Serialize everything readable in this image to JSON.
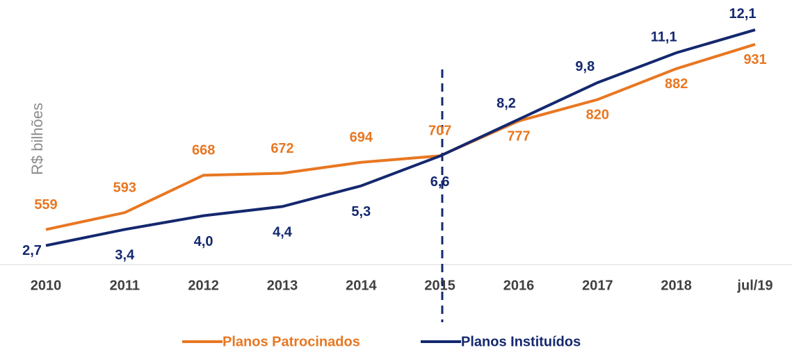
{
  "chart_data": {
    "type": "line",
    "y_axis_label": "R$ bilhões",
    "categories": [
      "2010",
      "2011",
      "2012",
      "2013",
      "2014",
      "2015",
      "2016",
      "2017",
      "2018",
      "jul/19"
    ],
    "ylim": [
      490,
      1020
    ],
    "y2lim": [
      1.9,
      13.4
    ],
    "series": [
      {
        "name": "Planos Patrocinados",
        "color": "#e87722",
        "axis": "y",
        "values": [
          559,
          593,
          668,
          672,
          694,
          707,
          777,
          820,
          882,
          931
        ]
      },
      {
        "name": "Planos Instituídos",
        "color": "#14286e",
        "axis": "y2",
        "values": [
          2.7,
          3.4,
          4.0,
          4.4,
          5.3,
          6.6,
          8.2,
          9.8,
          11.1,
          12.1
        ],
        "value_labels": [
          "2,7",
          "3,4",
          "4,0",
          "4,4",
          "5,3",
          "6,6",
          "8,2",
          "9,8",
          "11,1",
          "12,1"
        ]
      }
    ]
  }
}
